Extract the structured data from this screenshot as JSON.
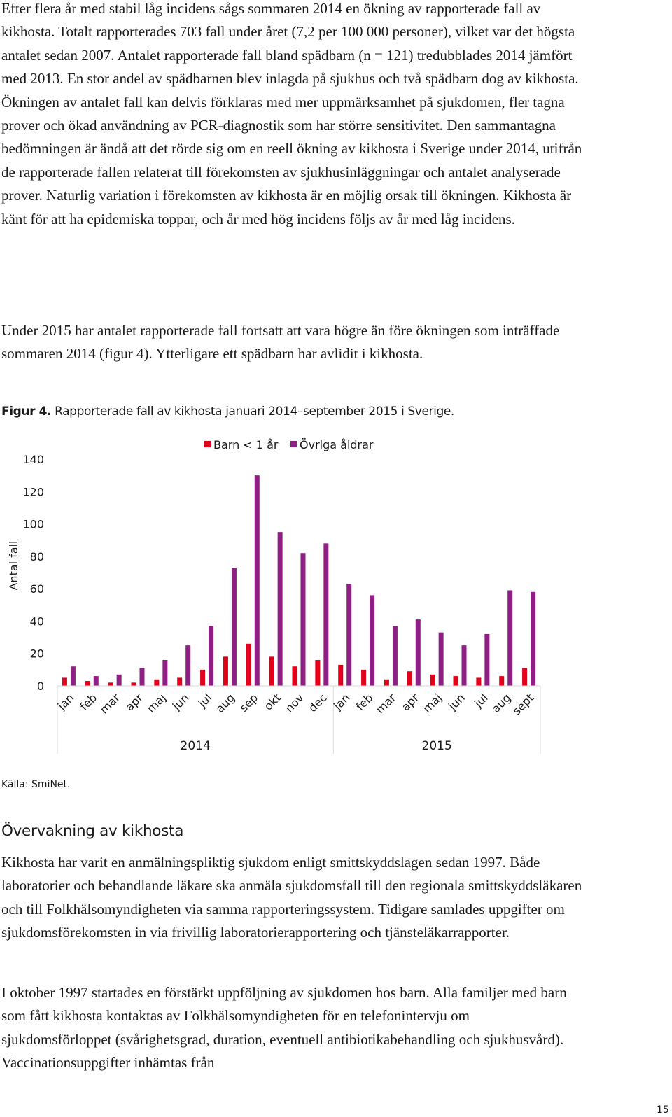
{
  "paragraphs": [
    "Efter flera år med stabil låg incidens sågs sommaren 2014 en ökning av rapporterade fall av kikhosta. Totalt rapporterades 703 fall under året (7,2 per 100 000 personer), vilket var det högsta antalet sedan 2007. Antalet rapporterade fall bland spädbarn (n = 121) tredubblades 2014 jämfört med 2013. En stor andel av spädbarnen blev inlagda på sjukhus och två spädbarn dog av kikhosta. Ökningen av antalet fall kan delvis förklaras med mer uppmärksamhet på sjukdomen, fler tagna prover och ökad användning av PCR-diagnostik som har större sensitivitet. Den sammantagna bedömningen är ändå att det rörde sig om en reell ökning av kikhosta i Sverige under 2014, utifrån de rapporterade fallen relaterat till förekomsten av sjukhusinläggningar och antalet analyserade prover. Naturlig variation i förekomsten av kikhosta är en möjlig orsak till ökningen. Kikhosta är känt för att ha epidemiska toppar, och år med hög incidens följs av år med låg incidens.",
    "Under 2015 har antalet rapporterade fall fortsatt att vara högre än före ökningen som inträffade sommaren 2014 (figur 4). Ytterligare ett spädbarn har avlidit i kikhosta."
  ],
  "figure": {
    "label": "Figur 4.",
    "caption": "Rapporterade fall av kikhosta januari 2014–september 2015 i Sverige.",
    "source": "Källa: SmiNet."
  },
  "section": {
    "heading": "Övervakning av kikhosta",
    "paragraphs": [
      "Kikhosta har varit en anmälningspliktig sjukdom enligt smittskyddslagen sedan 1997. Både laboratorier och behandlande läkare ska anmäla sjukdomsfall till den regionala smittskyddsläkaren och till Folkhälsomyndigheten via samma rapporteringssystem. Tidigare samlades uppgifter om sjukdomsförekomsten in via frivillig laboratorierapportering och tjänsteläkarrapporter.",
      "I oktober 1997 startades en förstärkt uppföljning av sjukdomen hos barn. Alla familjer med barn som fått kikhosta kontaktas av Folkhälsomyndigheten för en telefonintervju om sjukdomsförloppet (svårighetsgrad, duration, eventuell antibiotikabehandling och sjukhusvård). Vaccinationsuppgifter inhämtas från"
    ]
  },
  "page_number": "15",
  "chart_data": {
    "type": "bar",
    "title": "",
    "xlabel": "",
    "ylabel": "Antal fall",
    "ylim": [
      0,
      140
    ],
    "yticks": [
      0,
      20,
      40,
      60,
      80,
      100,
      120,
      140
    ],
    "grid": false,
    "legend_position": "top-center",
    "categories": [
      "jan",
      "feb",
      "mar",
      "apr",
      "maj",
      "jun",
      "jul",
      "aug",
      "sep",
      "okt",
      "nov",
      "dec",
      "jan",
      "feb",
      "mar",
      "apr",
      "maj",
      "jun",
      "jul",
      "aug",
      "sept"
    ],
    "groups": [
      {
        "label": "2014",
        "count": 12
      },
      {
        "label": "2015",
        "count": 9
      }
    ],
    "series": [
      {
        "name": "Barn < 1 år",
        "color": "#e3001b",
        "values": [
          5,
          3,
          2,
          2,
          4,
          5,
          10,
          18,
          26,
          18,
          12,
          16,
          13,
          10,
          4,
          9,
          7,
          6,
          5,
          6,
          11
        ]
      },
      {
        "name": "Övriga åldrar",
        "color": "#8e1f83",
        "values": [
          12,
          6,
          7,
          11,
          16,
          25,
          37,
          73,
          130,
          95,
          82,
          88,
          63,
          56,
          37,
          41,
          33,
          25,
          32,
          59,
          58
        ]
      }
    ]
  }
}
